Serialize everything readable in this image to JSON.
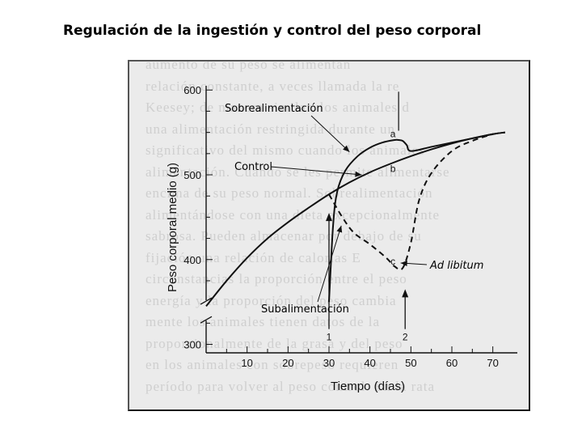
{
  "slide": {
    "title": "Regulación de la ingestión y control del peso corporal"
  },
  "chart_data": {
    "type": "line",
    "xlabel": "Tiempo (días)",
    "ylabel": "Peso corporal medio (g)",
    "xlim": [
      0,
      75
    ],
    "ylim": [
      290,
      605
    ],
    "x_ticks": [
      10,
      20,
      30,
      40,
      50,
      60,
      70
    ],
    "y_ticks": [
      300,
      400,
      500,
      600
    ],
    "y_axis_break": true,
    "series": [
      {
        "name": "Control",
        "style": "solid",
        "x": [
          0,
          5,
          10,
          15,
          20,
          25,
          30,
          35,
          40,
          45,
          50,
          55,
          60,
          65,
          70,
          73
        ],
        "y": [
          345,
          375,
          402,
          425,
          444,
          461,
          477,
          491,
          503,
          513,
          522,
          530,
          537,
          543,
          548,
          550
        ]
      },
      {
        "name": "Sobrealimentación",
        "style": "solid",
        "x": [
          30,
          31,
          32,
          34,
          37,
          40,
          43,
          46,
          47,
          48,
          49,
          50,
          55,
          60,
          65,
          70,
          73
        ],
        "y": [
          350,
          440,
          480,
          505,
          522,
          532,
          538,
          541,
          541,
          540,
          535,
          528,
          533,
          538,
          543,
          548,
          550
        ]
      },
      {
        "name": "Subalimentación",
        "style": "dashed",
        "x": [
          30,
          33,
          36,
          40,
          44,
          46,
          48,
          50,
          52,
          55,
          60,
          65,
          70
        ],
        "y": [
          477,
          452,
          432,
          418,
          402,
          392,
          390,
          420,
          470,
          502,
          528,
          540,
          548
        ]
      }
    ],
    "markers": [
      {
        "label": "1",
        "x": 30
      },
      {
        "label": "2",
        "x": 48
      }
    ],
    "point_labels": [
      {
        "label": "a",
        "x": 46,
        "y": 548
      },
      {
        "label": "b",
        "x": 46,
        "y": 507
      },
      {
        "label": "c",
        "x": 46,
        "y": 398
      }
    ],
    "annotations": [
      {
        "text": "Sobrealimentación",
        "points_to": "Sobrealimentación"
      },
      {
        "text": "Control",
        "points_to": "Control"
      },
      {
        "text": "Subalimentación",
        "points_to": "Subalimentación"
      },
      {
        "text": "Ad libitum",
        "points_to": "marker 2"
      }
    ]
  },
  "background_text": [
    "aumento de su peso se alimentan",
    "relación constante, a veces llamada la re",
    "Keesey; de manera similar, los animales d",
    "una alimentación restringida durante un",
    "significativo del mismo cuando los animales",
    "alimentación. Cuando se les permite alimentarse",
    "encima de su peso normal. Sobrealimentación",
    "alimentándose con una dieta excepcionalmente",
    "sabrosa. Pueden almacenar por debajo de su",
    "fijación una relación de calorías E",
    "circunstancias la proporción entre el peso",
    "energía y la proporción del peso cambia",
    "mente los animales tienen datos de la",
    "proporcionalmente de la grasa y del peso",
    "en los animales con sobrepeso requieren",
    "período para volver al peso control. En la rata"
  ]
}
